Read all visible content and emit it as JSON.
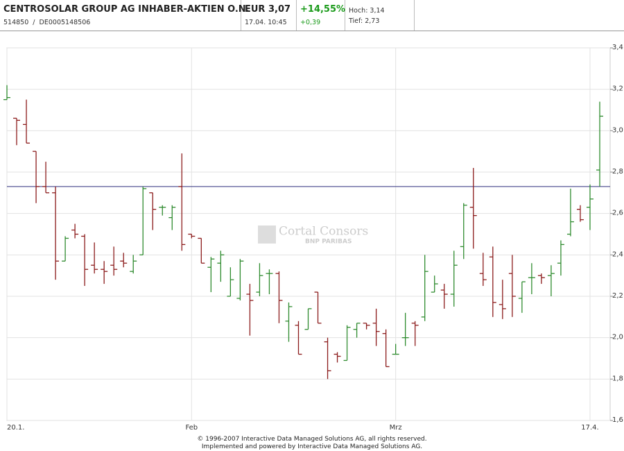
{
  "header": {
    "name": "CENTROSOLAR GROUP AG INHABER-AKTIEN O.N.",
    "ids": "514850  /  DE0005148506",
    "price": "EUR 3,07",
    "datetime": "17.04. 10:45",
    "change_pct": "+14,55%",
    "change": "+0,39",
    "high": "Hoch: 3,14",
    "low": "Tief: 2,73"
  },
  "watermark": {
    "brand": "Cortal Consors",
    "sub": "BNP PARIBAS"
  },
  "footer": {
    "line1": "© 1996-2007 Interactive Data Managed Solutions AG, all rights reserved.",
    "line2": "Implemented and powered by Interactive Data Managed Solutions AG."
  },
  "chart_data": {
    "type": "ohlc",
    "categories": [
      "20.1.",
      null,
      null,
      null,
      null,
      null,
      null,
      null,
      null,
      null,
      null,
      null,
      null,
      null,
      null,
      null,
      null,
      null,
      null,
      "Feb",
      null,
      null,
      null,
      null,
      null,
      null,
      null,
      null,
      null,
      null,
      null,
      null,
      null,
      null,
      null,
      null,
      null,
      null,
      null,
      null,
      "Mrz",
      null,
      null,
      null,
      null,
      null,
      null,
      null,
      null,
      null,
      null,
      null,
      null,
      null,
      null,
      null,
      null,
      null,
      null,
      null,
      "17.4.",
      null
    ],
    "open": [
      3.15,
      3.06,
      3.03,
      2.9,
      2.73,
      2.7,
      2.37,
      2.52,
      2.49,
      2.35,
      2.33,
      2.35,
      2.37,
      2.32,
      2.4,
      2.7,
      2.63,
      2.58,
      2.73,
      2.5,
      2.48,
      2.34,
      2.36,
      2.2,
      2.19,
      2.21,
      2.22,
      2.31,
      2.31,
      2.08,
      2.06,
      2.04,
      2.22,
      1.98,
      1.92,
      1.89,
      2.04,
      2.07,
      2.07,
      2.02,
      1.92,
      2.0,
      2.07,
      2.1,
      2.22,
      2.23,
      2.21,
      2.44,
      2.63,
      2.31,
      2.39,
      2.16,
      2.31,
      2.19,
      2.29,
      2.3,
      2.3,
      2.36,
      2.5,
      2.62,
      2.63,
      2.81
    ],
    "high": [
      3.22,
      3.06,
      3.15,
      2.9,
      2.85,
      2.73,
      2.49,
      2.55,
      2.5,
      2.46,
      2.37,
      2.44,
      2.41,
      2.4,
      2.73,
      2.7,
      2.64,
      2.64,
      2.89,
      2.5,
      2.48,
      2.39,
      2.42,
      2.34,
      2.38,
      2.26,
      2.36,
      2.33,
      2.32,
      2.17,
      2.08,
      2.14,
      2.22,
      2.0,
      1.93,
      2.06,
      2.07,
      2.07,
      2.14,
      2.04,
      1.97,
      2.12,
      2.08,
      2.4,
      2.3,
      2.26,
      2.42,
      2.65,
      2.82,
      2.41,
      2.44,
      2.28,
      2.4,
      2.27,
      2.36,
      2.31,
      2.35,
      2.47,
      2.72,
      2.64,
      2.74,
      3.14
    ],
    "low": [
      3.15,
      2.93,
      2.94,
      2.65,
      2.7,
      2.28,
      2.37,
      2.48,
      2.25,
      2.31,
      2.26,
      2.3,
      2.34,
      2.31,
      2.4,
      2.52,
      2.59,
      2.52,
      2.42,
      2.48,
      2.36,
      2.22,
      2.27,
      2.2,
      2.18,
      2.01,
      2.2,
      2.21,
      2.07,
      1.98,
      1.92,
      2.04,
      2.07,
      1.8,
      1.88,
      1.89,
      2.0,
      2.04,
      1.96,
      1.86,
      1.92,
      1.96,
      1.96,
      2.08,
      2.22,
      2.14,
      2.15,
      2.38,
      2.43,
      2.25,
      2.1,
      2.09,
      2.1,
      2.12,
      2.21,
      2.26,
      2.2,
      2.3,
      2.49,
      2.56,
      2.52,
      2.73
    ],
    "close": [
      3.16,
      3.05,
      2.94,
      2.73,
      2.7,
      2.37,
      2.48,
      2.5,
      2.33,
      2.33,
      2.32,
      2.33,
      2.36,
      2.37,
      2.72,
      2.62,
      2.63,
      2.63,
      2.45,
      2.49,
      2.36,
      2.38,
      2.4,
      2.28,
      2.37,
      2.18,
      2.3,
      2.31,
      2.18,
      2.15,
      1.92,
      2.14,
      2.07,
      1.84,
      1.91,
      2.05,
      2.07,
      2.06,
      2.03,
      1.86,
      1.92,
      2.0,
      2.06,
      2.32,
      2.26,
      2.21,
      2.35,
      2.64,
      2.59,
      2.28,
      2.17,
      2.14,
      2.2,
      2.27,
      2.29,
      2.29,
      2.31,
      2.45,
      2.56,
      2.57,
      2.67,
      3.07
    ],
    "up_color": "#2e8b2e",
    "down_color": "#8b1a1a",
    "ref_line": 2.73,
    "ref_color": "#2a2a7a",
    "ylim": [
      1.6,
      3.4
    ],
    "yticks": [
      {
        "value": 1.6,
        "label": "1,6"
      },
      {
        "value": 1.8,
        "label": "1,8"
      },
      {
        "value": 2.0,
        "label": "2,0"
      },
      {
        "value": 2.2,
        "label": "2,2"
      },
      {
        "value": 2.4,
        "label": "2,4"
      },
      {
        "value": 2.6,
        "label": "2,6"
      },
      {
        "value": 2.8,
        "label": "2,8"
      },
      {
        "value": 3.0,
        "label": "3,0"
      },
      {
        "value": 3.2,
        "label": "3,2"
      },
      {
        "value": 3.4,
        "label": "3,4"
      }
    ],
    "grid": true
  }
}
